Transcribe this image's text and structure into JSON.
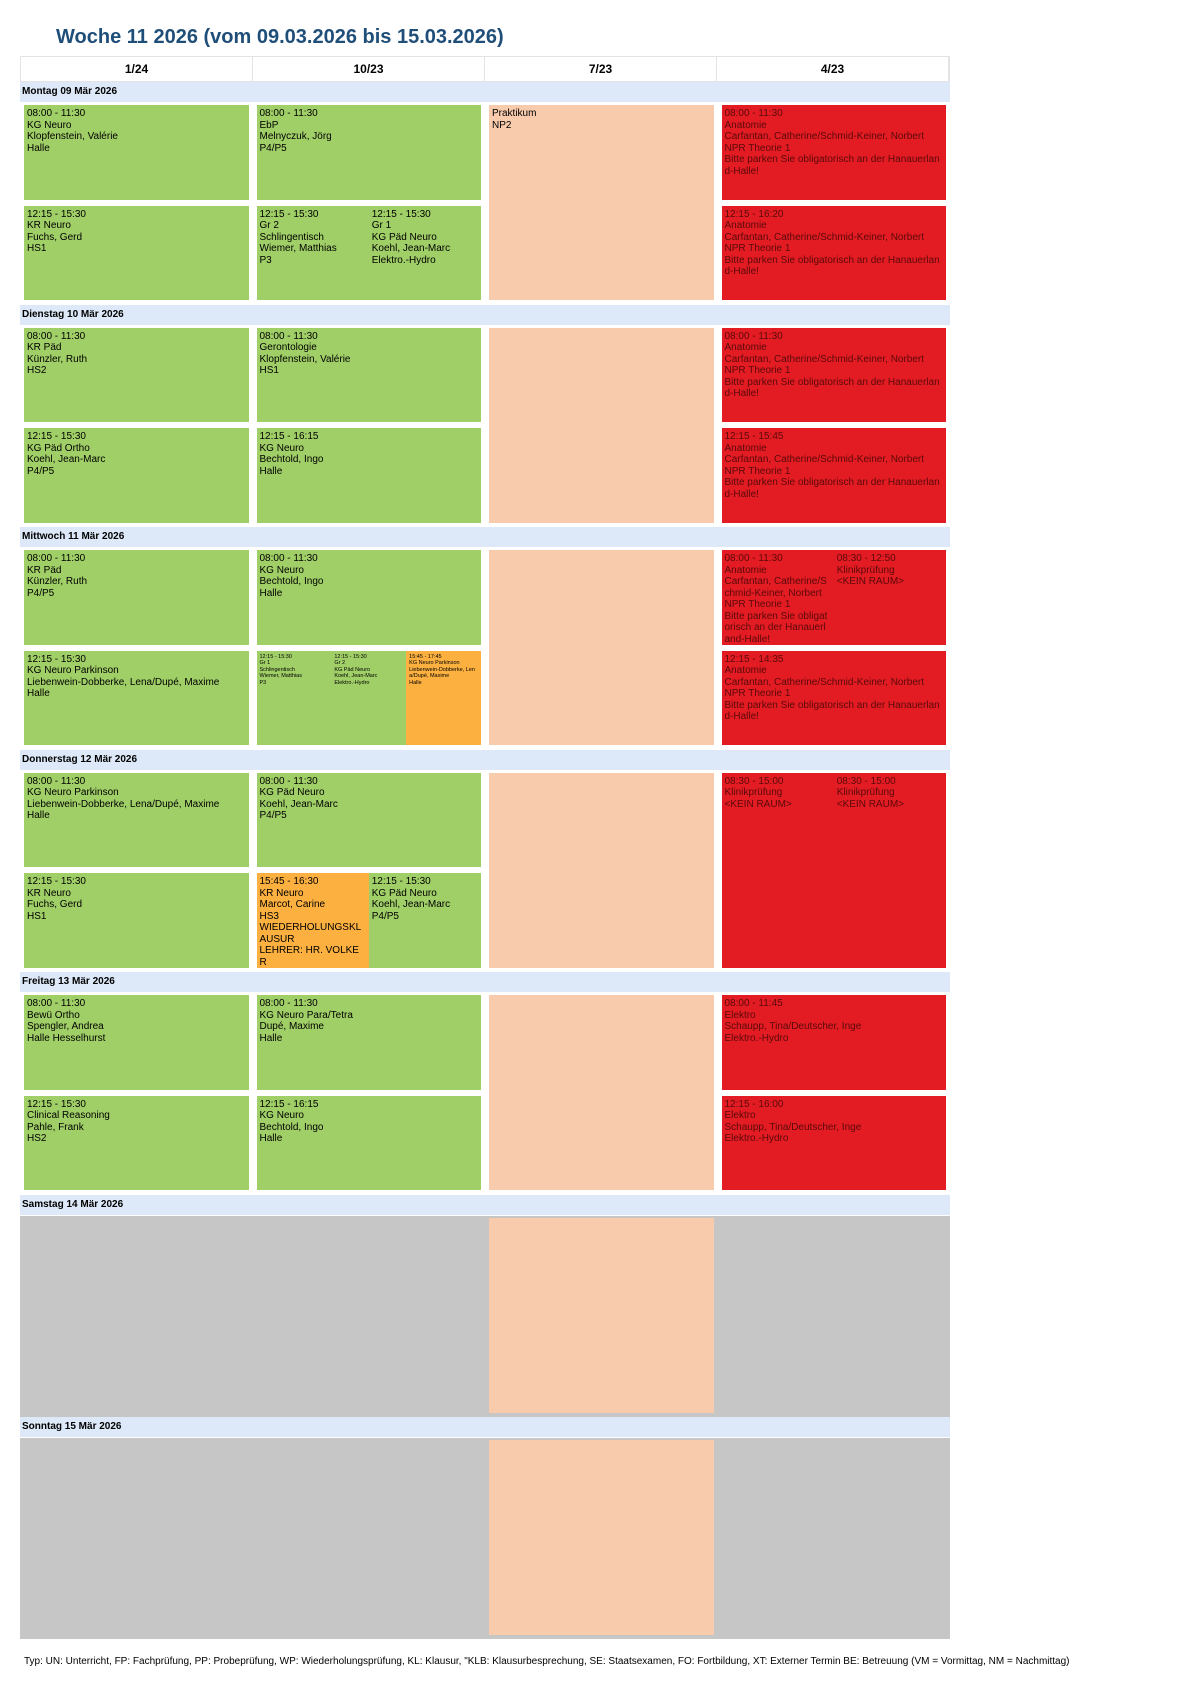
{
  "title": "Woche 11 2026 (vom 09.03.2026 bis 15.03.2026)",
  "columns": [
    "1/24",
    "10/23",
    "7/23",
    "4/23"
  ],
  "colors": {
    "green": "#a0cf67",
    "red": "#e31b23",
    "peach": "#f8cbad",
    "orange": "#fbb040",
    "grey": "#c6c6c6",
    "dayheader": "#dde9f8",
    "title": "#1f4e79"
  },
  "days": [
    {
      "label": "Montag 09 Mär 2026",
      "weekend": false,
      "blocks": [
        {
          "col": 1,
          "slot": "am",
          "entries": [
            {
              "color": "green",
              "lines": [
                "08:00 - 11:30",
                "KG Neuro",
                "Klopfenstein, Valérie",
                "Halle"
              ]
            }
          ]
        },
        {
          "col": 2,
          "slot": "am",
          "entries": [
            {
              "color": "green",
              "lines": [
                "08:00 - 11:30",
                "EbP",
                "Melnyczuk, Jörg",
                "P4/P5"
              ]
            }
          ]
        },
        {
          "col": 3,
          "slot": "full",
          "entries": [
            {
              "color": "peach",
              "lines": [
                "Praktikum",
                "NP2"
              ]
            }
          ]
        },
        {
          "col": 4,
          "slot": "am",
          "entries": [
            {
              "color": "red",
              "lines": [
                "08:00 - 11:30",
                "Anatomie",
                "Carfantan, Catherine/Schmid-Keiner, Norbert",
                "NPR Theorie 1",
                "Bitte parken Sie obligatorisch an der Hanauerland-Halle!"
              ]
            }
          ]
        },
        {
          "col": 1,
          "slot": "pm",
          "entries": [
            {
              "color": "green",
              "lines": [
                "12:15 - 15:30",
                "KR Neuro",
                "Fuchs, Gerd",
                "HS1"
              ]
            }
          ]
        },
        {
          "col": 2,
          "slot": "pm",
          "entries": [
            {
              "color": "green",
              "lines": [
                "12:15 - 15:30",
                "Gr 2",
                "Schlingentisch",
                "Wiemer, Matthias",
                "P3"
              ]
            },
            {
              "color": "green",
              "lines": [
                "12:15 - 15:30",
                "Gr 1",
                "KG Päd Neuro",
                "Koehl, Jean-Marc",
                "Elektro.-Hydro"
              ]
            }
          ]
        },
        {
          "col": 4,
          "slot": "pm",
          "entries": [
            {
              "color": "red",
              "lines": [
                "12:15 - 16:20",
                "Anatomie",
                "Carfantan, Catherine/Schmid-Keiner, Norbert",
                "NPR Theorie 1",
                "Bitte parken Sie obligatorisch an der Hanauerland-Halle!"
              ]
            }
          ]
        }
      ]
    },
    {
      "label": "Dienstag 10 Mär 2026",
      "weekend": false,
      "blocks": [
        {
          "col": 1,
          "slot": "am",
          "entries": [
            {
              "color": "green",
              "lines": [
                "08:00 - 11:30",
                "KR Päd",
                "Künzler, Ruth",
                "HS2"
              ]
            }
          ]
        },
        {
          "col": 2,
          "slot": "am",
          "entries": [
            {
              "color": "green",
              "lines": [
                "08:00 - 11:30",
                "Gerontologie",
                "Klopfenstein, Valérie",
                "HS1"
              ]
            }
          ]
        },
        {
          "col": 3,
          "slot": "full",
          "entries": [
            {
              "color": "peach",
              "lines": []
            }
          ]
        },
        {
          "col": 4,
          "slot": "am",
          "entries": [
            {
              "color": "red",
              "lines": [
                "08:00 - 11:30",
                "Anatomie",
                "Carfantan, Catherine/Schmid-Keiner, Norbert",
                "NPR Theorie 1",
                "Bitte parken Sie obligatorisch an der Hanauerland-Halle!"
              ]
            }
          ]
        },
        {
          "col": 1,
          "slot": "pm",
          "entries": [
            {
              "color": "green",
              "lines": [
                "12:15 - 15:30",
                "KG Päd Ortho",
                "Koehl, Jean-Marc",
                "P4/P5"
              ]
            }
          ]
        },
        {
          "col": 2,
          "slot": "pm",
          "entries": [
            {
              "color": "green",
              "lines": [
                "12:15 - 16:15",
                "KG Neuro",
                "Bechtold, Ingo",
                "Halle"
              ]
            }
          ]
        },
        {
          "col": 4,
          "slot": "pm",
          "entries": [
            {
              "color": "red",
              "lines": [
                "12:15 - 15:45",
                "Anatomie",
                "Carfantan, Catherine/Schmid-Keiner, Norbert",
                "NPR Theorie 1",
                "Bitte parken Sie obligatorisch an der Hanauerland-Halle!"
              ]
            }
          ]
        }
      ]
    },
    {
      "label": "Mittwoch 11 Mär 2026",
      "weekend": false,
      "blocks": [
        {
          "col": 1,
          "slot": "am",
          "entries": [
            {
              "color": "green",
              "lines": [
                "08:00 - 11:30",
                "KR Päd",
                "Künzler, Ruth",
                "P4/P5"
              ]
            }
          ]
        },
        {
          "col": 2,
          "slot": "am",
          "entries": [
            {
              "color": "green",
              "lines": [
                "08:00 - 11:30",
                "KG Neuro",
                "Bechtold, Ingo",
                "Halle"
              ]
            }
          ]
        },
        {
          "col": 3,
          "slot": "full",
          "entries": [
            {
              "color": "peach",
              "lines": []
            }
          ]
        },
        {
          "col": 4,
          "slot": "am",
          "entries": [
            {
              "color": "red",
              "lines": [
                "08:00 - 11:30",
                "Anatomie",
                "Carfantan, Catherine/Schmid-Keiner, Norbert",
                "NPR Theorie 1",
                "Bitte parken Sie obligatorisch an der Hanauerland-Halle!"
              ]
            },
            {
              "color": "red",
              "lines": [
                "08:30 - 12:50",
                "Klinikprüfung",
                "<KEIN RAUM>"
              ]
            }
          ]
        },
        {
          "col": 1,
          "slot": "pm",
          "entries": [
            {
              "color": "green",
              "lines": [
                "12:15 - 15:30",
                "KG Neuro Parkinson",
                "Liebenwein-Dobberke, Lena/Dupé, Maxime",
                "Halle"
              ]
            }
          ]
        },
        {
          "col": 2,
          "slot": "pm",
          "entries": [
            {
              "color": "green",
              "small": true,
              "lines": [
                "12:15 - 15:30",
                "Gr 1",
                "Schlingentisch",
                "Wiemer, Matthias",
                "P3"
              ]
            },
            {
              "color": "green",
              "small": true,
              "lines": [
                "12:15 - 15:30",
                "Gr 2",
                "KG Päd Neuro",
                "Koehl, Jean-Marc",
                "Elektro.-Hydro"
              ]
            },
            {
              "color": "orange",
              "small": true,
              "lines": [
                "15:45 - 17:45",
                "KG Neuro Parkinson",
                "Liebenwein-Dobberke, Lena/Dupé, Maxime",
                "Halle"
              ]
            }
          ]
        },
        {
          "col": 4,
          "slot": "pm",
          "entries": [
            {
              "color": "red",
              "lines": [
                "12:15 - 14:35",
                "Anatomie",
                "Carfantan, Catherine/Schmid-Keiner, Norbert",
                "NPR Theorie 1",
                "Bitte parken Sie obligatorisch an der Hanauerland-Halle!"
              ]
            }
          ]
        }
      ]
    },
    {
      "label": "Donnerstag 12 Mär 2026",
      "weekend": false,
      "blocks": [
        {
          "col": 1,
          "slot": "am",
          "entries": [
            {
              "color": "green",
              "lines": [
                "08:00 - 11:30",
                "KG Neuro Parkinson",
                "Liebenwein-Dobberke, Lena/Dupé, Maxime",
                "Halle"
              ]
            }
          ]
        },
        {
          "col": 2,
          "slot": "am",
          "entries": [
            {
              "color": "green",
              "lines": [
                "08:00 - 11:30",
                "KG Päd Neuro",
                "Koehl, Jean-Marc",
                "P4/P5"
              ]
            }
          ]
        },
        {
          "col": 3,
          "slot": "full",
          "entries": [
            {
              "color": "peach",
              "lines": []
            }
          ]
        },
        {
          "col": 4,
          "slot": "full",
          "entries": [
            {
              "color": "red",
              "lines": [
                "08:30 - 15:00",
                "Klinikprüfung",
                "<KEIN RAUM>"
              ]
            },
            {
              "color": "red",
              "lines": [
                "08:30 - 15:00",
                "Klinikprüfung",
                "<KEIN RAUM>"
              ]
            }
          ]
        },
        {
          "col": 1,
          "slot": "pm",
          "entries": [
            {
              "color": "green",
              "lines": [
                "12:15 - 15:30",
                "KR Neuro",
                "Fuchs, Gerd",
                "HS1"
              ]
            }
          ]
        },
        {
          "col": 2,
          "slot": "pm",
          "entries": [
            {
              "color": "orange",
              "lines": [
                "15:45 - 16:30",
                "KR Neuro",
                "Marcot, Carine",
                "HS3",
                "WIEDERHOLUNGSKLAUSUR",
                "LEHRER: HR. VOLKER"
              ]
            },
            {
              "color": "green",
              "lines": [
                "12:15 - 15:30",
                "KG Päd Neuro",
                "Koehl, Jean-Marc",
                "P4/P5"
              ]
            }
          ]
        }
      ]
    },
    {
      "label": "Freitag 13 Mär 2026",
      "weekend": false,
      "blocks": [
        {
          "col": 1,
          "slot": "am",
          "entries": [
            {
              "color": "green",
              "lines": [
                "08:00 - 11:30",
                "Bewü Ortho",
                "Spengler, Andrea",
                "Halle Hesselhurst"
              ]
            }
          ]
        },
        {
          "col": 2,
          "slot": "am",
          "entries": [
            {
              "color": "green",
              "lines": [
                "08:00 - 11:30",
                "KG Neuro Para/Tetra",
                "Dupé, Maxime",
                "Halle"
              ]
            }
          ]
        },
        {
          "col": 3,
          "slot": "full",
          "entries": [
            {
              "color": "peach",
              "lines": []
            }
          ]
        },
        {
          "col": 4,
          "slot": "am",
          "entries": [
            {
              "color": "red",
              "lines": [
                "08:00 - 11:45",
                "Elektro",
                "Schaupp, Tina/Deutscher, Inge",
                "Elektro.-Hydro"
              ]
            }
          ]
        },
        {
          "col": 1,
          "slot": "pm",
          "entries": [
            {
              "color": "green",
              "lines": [
                "12:15 - 15:30",
                "Clinical Reasoning",
                "Pahle, Frank",
                "HS2"
              ]
            }
          ]
        },
        {
          "col": 2,
          "slot": "pm",
          "entries": [
            {
              "color": "green",
              "lines": [
                "12:15 - 16:15",
                "KG Neuro",
                "Bechtold, Ingo",
                "Halle"
              ]
            }
          ]
        },
        {
          "col": 4,
          "slot": "pm",
          "entries": [
            {
              "color": "red",
              "lines": [
                "12:15 - 16:00",
                "Elektro",
                "Schaupp, Tina/Deutscher, Inge",
                "Elektro.-Hydro"
              ]
            }
          ]
        }
      ]
    },
    {
      "label": "Samstag 14 Mär 2026",
      "weekend": true,
      "blocks": [
        {
          "col": 3,
          "slot": "full",
          "entries": [
            {
              "color": "peach",
              "lines": []
            }
          ]
        }
      ]
    },
    {
      "label": "Sonntag 15 Mär 2026",
      "weekend": true,
      "blocks": [
        {
          "col": 3,
          "slot": "full",
          "entries": [
            {
              "color": "peach",
              "lines": []
            }
          ]
        }
      ]
    }
  ],
  "footer": "Typ: UN: Unterricht, FP: Fachprüfung, PP: Probeprüfung, WP: Wiederholungsprüfung, KL: Klausur, \"KLB: Klausurbesprechung, SE: Staatsexamen, FO: Fortbildung, XT: Externer Termin BE: Betreuung (VM = Vormittag, NM = Nachmittag)"
}
